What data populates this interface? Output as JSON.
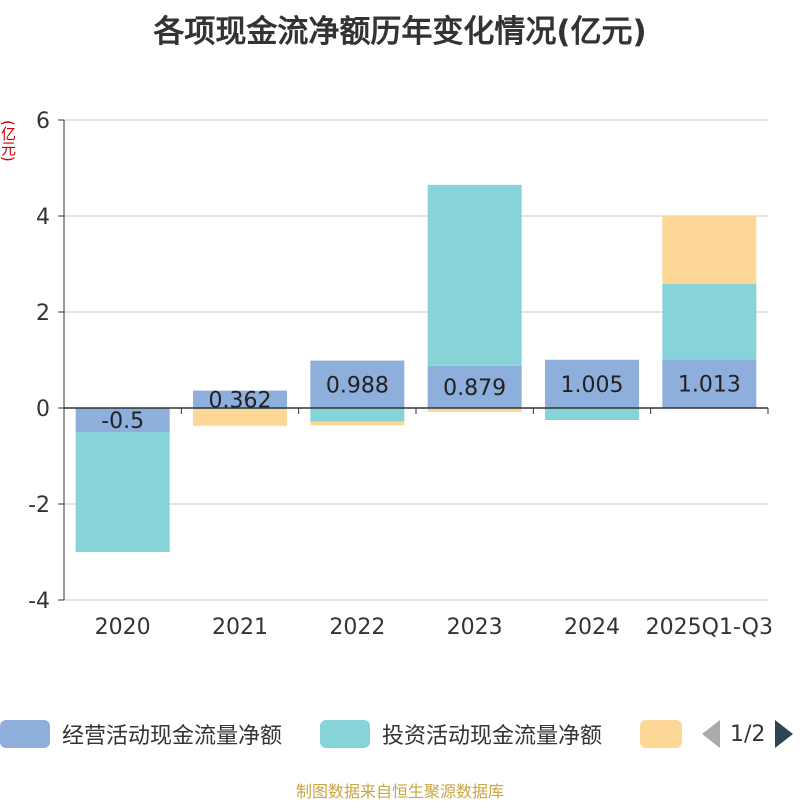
{
  "title": "各项现金流净额历年变化情况(亿元)",
  "unit_label": "(亿元)",
  "source": "制图数据来自恒生聚源数据库",
  "pager": {
    "text": "1/2"
  },
  "colors": {
    "operating": "#8eaedc",
    "investing": "#86d4d8",
    "financing": "#fcd796",
    "axis": "#333333",
    "grid": "#cccccc",
    "unit": "#cc0000"
  },
  "chart_data": {
    "type": "bar",
    "stacked": true,
    "title": "各项现金流净额历年变化情况(亿元)",
    "ylabel": "(亿元)",
    "ylim": [
      -4,
      6
    ],
    "yticks": [
      -4,
      -2,
      0,
      2,
      4,
      6
    ],
    "categories": [
      "2020",
      "2021",
      "2022",
      "2023",
      "2024",
      "2025Q1-Q3"
    ],
    "series": [
      {
        "name": "经营活动现金流量净额",
        "color_key": "operating",
        "values": [
          -0.5,
          0.362,
          0.988,
          0.879,
          1.005,
          1.013
        ],
        "labels": [
          "-0.5",
          "0.362",
          "0.988",
          "0.879",
          "1.005",
          "1.013"
        ]
      },
      {
        "name": "投资活动现金流量净额",
        "color_key": "investing",
        "values": [
          -2.5,
          -0.02,
          -0.28,
          3.77,
          -0.25,
          1.57
        ]
      },
      {
        "name": "",
        "color_key": "financing",
        "values": [
          0.0,
          -0.35,
          -0.08,
          -0.08,
          0.0,
          1.42
        ]
      }
    ],
    "legend": [
      "经营活动现金流量净额",
      "投资活动现金流量净额",
      ""
    ]
  }
}
